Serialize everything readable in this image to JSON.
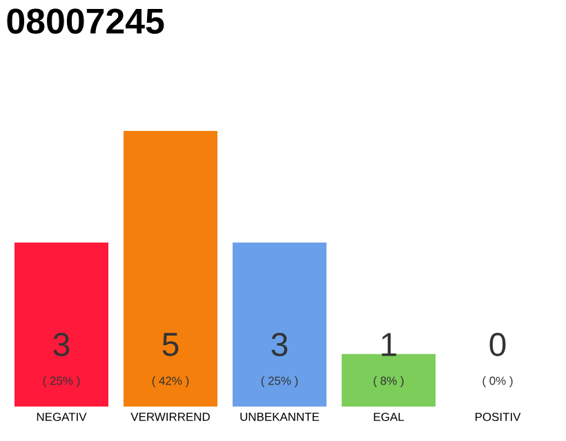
{
  "chart_data": {
    "type": "bar",
    "title": "08007245",
    "categories": [
      "NEGATIV",
      "VERWIRREND",
      "UNBEKANNTE",
      "EGAL",
      "POSITIV"
    ],
    "values": [
      25,
      42,
      25,
      8,
      0
    ],
    "colors": [
      "#ff1a3c",
      "#f47f0c",
      "#6aa0ea",
      "#7ccd5a",
      "#cccccc"
    ],
    "value_labels": [
      "( 25% )",
      "( 42% )",
      "( 25% )",
      "( 8% )",
      "( 0% )"
    ],
    "annotations": [
      "3",
      "5",
      "3",
      "1",
      "0"
    ]
  }
}
